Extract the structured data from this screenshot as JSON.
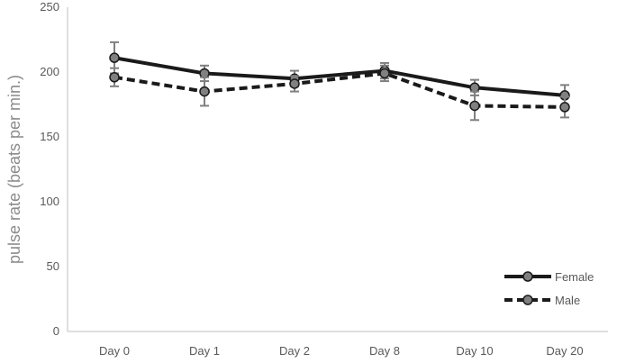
{
  "chart_data": {
    "type": "line",
    "title": "",
    "xlabel": "",
    "ylabel": "pulse rate (beats per min.)",
    "ylim": [
      0,
      250
    ],
    "yticks": [
      0,
      50,
      100,
      150,
      200,
      250
    ],
    "categories": [
      "Day 0",
      "Day 1",
      "Day 2",
      "Day 8",
      "Day 10",
      "Day 20"
    ],
    "grid": false,
    "legend_position": "bottom-right",
    "series": [
      {
        "name": "Female",
        "line_style": "solid",
        "values": [
          211,
          199,
          195,
          201,
          188,
          182
        ],
        "error": [
          12,
          6,
          6,
          6,
          6,
          8
        ]
      },
      {
        "name": "Male",
        "line_style": "dashed",
        "values": [
          196,
          185,
          191,
          199,
          174,
          173
        ],
        "error": [
          7,
          11,
          6,
          6,
          11,
          8
        ]
      }
    ],
    "colors": {
      "line": "#1a1a1a",
      "marker_fill": "#808080",
      "error_bar": "#808080",
      "axis": "#bfbfbf"
    }
  }
}
